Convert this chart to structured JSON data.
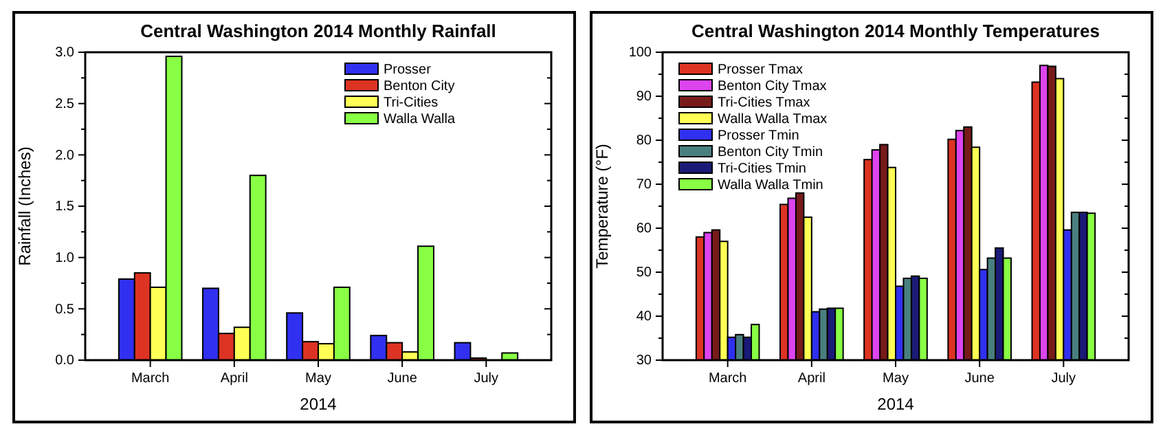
{
  "chart_data": [
    {
      "type": "bar",
      "title": "Central Washington 2014 Monthly Rainfall",
      "xlabel": "2014",
      "ylabel": "Rainfall (Inches)",
      "categories": [
        "March",
        "April",
        "May",
        "June",
        "July"
      ],
      "ylim": [
        0,
        3
      ],
      "yticks": [
        {
          "value": 0,
          "label": "0.0"
        },
        {
          "value": 0.5,
          "label": "0.5"
        },
        {
          "value": 1,
          "label": "1.0"
        },
        {
          "value": 1.5,
          "label": "1.5"
        },
        {
          "value": 2,
          "label": "2.0"
        },
        {
          "value": 2.5,
          "label": "2.5"
        },
        {
          "value": 3,
          "label": "3.0"
        }
      ],
      "legend": "top right",
      "series": [
        {
          "name": "Prosser",
          "color": "#3030f0",
          "values": [
            0.79,
            0.7,
            0.46,
            0.24,
            0.17
          ]
        },
        {
          "name": "Benton City",
          "color": "#dd3322",
          "values": [
            0.85,
            0.26,
            0.18,
            0.17,
            0.02
          ]
        },
        {
          "name": "Tri-Cities",
          "color": "#ffff55",
          "values": [
            0.71,
            0.32,
            0.16,
            0.08,
            null
          ]
        },
        {
          "name": "Walla Walla",
          "color": "#88ff44",
          "values": [
            2.96,
            1.8,
            0.71,
            1.11,
            0.07
          ]
        }
      ]
    },
    {
      "type": "bar",
      "title": "Central Washington 2014 Monthly Temperatures",
      "xlabel": "2014",
      "ylabel": "Temperature (°F)",
      "categories": [
        "March",
        "April",
        "May",
        "June",
        "July"
      ],
      "ylim": [
        30,
        100
      ],
      "yticks": [
        30,
        40,
        50,
        60,
        70,
        80,
        90,
        100
      ],
      "legend": "top left",
      "series": [
        {
          "name": "Prosser Tmax",
          "color": "#dd3322",
          "values": [
            58,
            65.4,
            75.6,
            80.2,
            93.2
          ]
        },
        {
          "name": "Benton City Tmax",
          "color": "#dd44ee",
          "values": [
            59,
            66.8,
            77.8,
            82.2,
            97
          ]
        },
        {
          "name": "Tri-Cities Tmax",
          "color": "#771a1a",
          "values": [
            59.6,
            68,
            79,
            83,
            96.8
          ]
        },
        {
          "name": "Walla Walla Tmax",
          "color": "#ffff55",
          "values": [
            57,
            62.5,
            73.8,
            78.4,
            94
          ]
        },
        {
          "name": "Prosser Tmin",
          "color": "#3030f0",
          "values": [
            35.2,
            41,
            46.8,
            50.6,
            59.6
          ]
        },
        {
          "name": "Benton City Tmin",
          "color": "#4a7f7f",
          "values": [
            35.8,
            41.6,
            48.6,
            53.2,
            63.6
          ]
        },
        {
          "name": "Tri-Cities Tmin",
          "color": "#1a1a77",
          "values": [
            35.2,
            41.8,
            49.1,
            55.5,
            63.6
          ]
        },
        {
          "name": "Walla Walla Tmin",
          "color": "#88ff44",
          "values": [
            38.1,
            41.8,
            48.6,
            53.2,
            63.4
          ]
        }
      ]
    }
  ]
}
